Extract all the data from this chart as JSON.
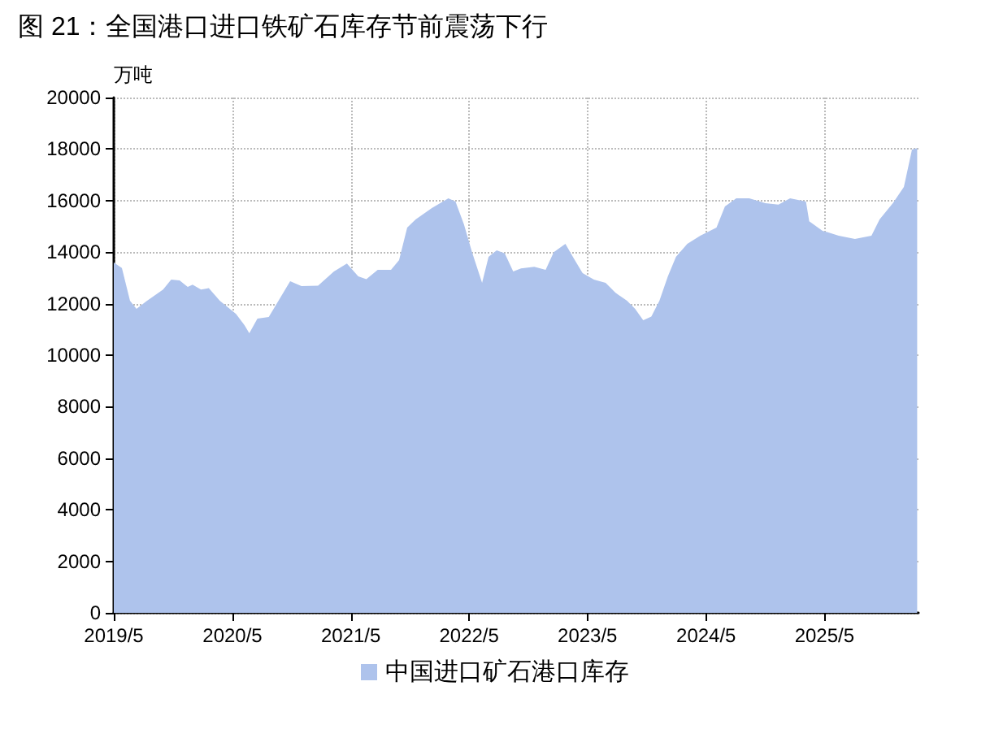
{
  "chart_data": {
    "type": "area",
    "title": "图 21：全国港口进口铁矿石库存节前震荡下行",
    "ylabel": "万吨",
    "x": [
      "2019-05-01",
      "2019-05-26",
      "2019-06-20",
      "2019-07-10",
      "2019-08-10",
      "2019-09-30",
      "2019-10-25",
      "2019-11-20",
      "2019-12-15",
      "2019-12-30",
      "2020-01-25",
      "2020-02-18",
      "2020-03-23",
      "2020-05-12",
      "2020-06-07",
      "2020-06-22",
      "2020-07-17",
      "2020-08-21",
      "2020-09-26",
      "2020-10-26",
      "2020-11-30",
      "2021-01-20",
      "2021-03-10",
      "2021-04-19",
      "2021-05-24",
      "2021-06-18",
      "2021-07-23",
      "2021-09-02",
      "2021-09-27",
      "2021-10-22",
      "2021-11-17",
      "2022-01-06",
      "2022-02-26",
      "2022-03-20",
      "2022-04-15",
      "2022-05-10",
      "2022-06-10",
      "2022-06-30",
      "2022-07-25",
      "2022-08-19",
      "2022-09-14",
      "2022-10-08",
      "2022-11-18",
      "2022-12-23",
      "2023-01-17",
      "2023-02-22",
      "2023-03-17",
      "2023-04-16",
      "2023-05-21",
      "2023-06-26",
      "2023-07-26",
      "2023-08-31",
      "2023-09-25",
      "2023-10-20",
      "2023-11-14",
      "2023-12-09",
      "2024-01-04",
      "2024-01-29",
      "2024-03-04",
      "2024-04-13",
      "2024-06-02",
      "2024-06-28",
      "2024-08-02",
      "2024-09-11",
      "2024-10-31",
      "2024-12-10",
      "2025-01-15",
      "2025-03-05",
      "2025-03-15",
      "2025-04-25",
      "2025-06-14",
      "2025-08-03",
      "2025-09-23",
      "2025-10-18",
      "2025-11-28",
      "2026-01-01",
      "2026-01-26",
      "2026-02-11"
    ],
    "series": [
      {
        "name": "中国进口矿石港口库存",
        "color": "#aec3ec",
        "values": [
          13600,
          13380,
          12110,
          11800,
          12100,
          12550,
          12930,
          12900,
          12650,
          12740,
          12550,
          12600,
          12110,
          11600,
          11170,
          10850,
          11420,
          11480,
          12240,
          12870,
          12680,
          12700,
          13250,
          13560,
          13060,
          12950,
          13310,
          13310,
          13690,
          14950,
          15270,
          15710,
          16090,
          15960,
          15080,
          14000,
          12810,
          13820,
          14070,
          13950,
          13250,
          13370,
          13430,
          13310,
          14000,
          14320,
          13820,
          13190,
          12930,
          12810,
          12430,
          12110,
          11800,
          11360,
          11500,
          12110,
          13060,
          13820,
          14320,
          14640,
          14950,
          15770,
          16090,
          16090,
          15900,
          15840,
          16090,
          15960,
          15200,
          14830,
          14640,
          14510,
          14640,
          15270,
          15900,
          16530,
          17980,
          18040
        ]
      }
    ],
    "xlim": [
      "2019-05-01",
      "2026-02-15"
    ],
    "xticks": [
      {
        "value": "2019-05-01",
        "label": "2019/5"
      },
      {
        "value": "2020-05-01",
        "label": "2020/5"
      },
      {
        "value": "2021-05-01",
        "label": "2021/5"
      },
      {
        "value": "2022-05-01",
        "label": "2022/5"
      },
      {
        "value": "2023-05-01",
        "label": "2023/5"
      },
      {
        "value": "2024-05-01",
        "label": "2024/5"
      },
      {
        "value": "2025-05-01",
        "label": "2025/5"
      }
    ],
    "ylim": [
      0,
      20000
    ],
    "yticks": [
      0,
      2000,
      4000,
      6000,
      8000,
      10000,
      12000,
      14000,
      16000,
      18000,
      20000
    ],
    "grid": true,
    "legend": "bottom",
    "marker": "none"
  }
}
